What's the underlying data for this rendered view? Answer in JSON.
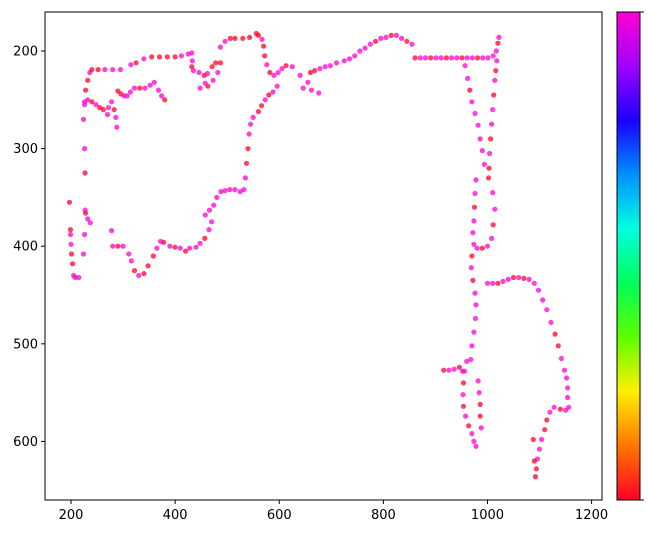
{
  "chart_data": {
    "type": "scatter",
    "title": "",
    "xlabel": "",
    "ylabel": "",
    "xlim": [
      150,
      1220
    ],
    "ylim": [
      660,
      160
    ],
    "y_inverted": true,
    "xticks": [
      200,
      400,
      600,
      800,
      1000,
      1200
    ],
    "yticks": [
      200,
      300,
      400,
      500,
      600
    ],
    "grid": false,
    "legend": "none",
    "marker_opacity": 0.75,
    "colormap": "gist_rainbow_r",
    "colorbar": {
      "position": "right",
      "ticklabels": [],
      "colors": [
        "#ff0028",
        "#ff7700",
        "#ffef00",
        "#5cff00",
        "#00ff59",
        "#00ffe1",
        "#0091ff",
        "#1a00ff",
        "#a000ff",
        "#ff00d2"
      ]
    },
    "points": [
      [
        197,
        355
      ],
      [
        199,
        383
      ],
      [
        199,
        388
      ],
      [
        200,
        398
      ],
      [
        201,
        408
      ],
      [
        203,
        418
      ],
      [
        205,
        430
      ],
      [
        208,
        432
      ],
      [
        215,
        432
      ],
      [
        224,
        408
      ],
      [
        226,
        388
      ],
      [
        227,
        363
      ],
      [
        227,
        325
      ],
      [
        226,
        300
      ],
      [
        224,
        270
      ],
      [
        226,
        252
      ],
      [
        228,
        240
      ],
      [
        232,
        230
      ],
      [
        236,
        222
      ],
      [
        240,
        219
      ],
      [
        252,
        219
      ],
      [
        265,
        219
      ],
      [
        280,
        219
      ],
      [
        295,
        219
      ],
      [
        315,
        214
      ],
      [
        325,
        212
      ],
      [
        340,
        208
      ],
      [
        355,
        206
      ],
      [
        370,
        206
      ],
      [
        385,
        206
      ],
      [
        400,
        206
      ],
      [
        412,
        205
      ],
      [
        425,
        203
      ],
      [
        432,
        202
      ],
      [
        433,
        210
      ],
      [
        432,
        216
      ],
      [
        435,
        220
      ],
      [
        446,
        222
      ],
      [
        456,
        225
      ],
      [
        462,
        223
      ],
      [
        471,
        216
      ],
      [
        478,
        212
      ],
      [
        487,
        212
      ],
      [
        482,
        222
      ],
      [
        473,
        230
      ],
      [
        463,
        236
      ],
      [
        458,
        233
      ],
      [
        448,
        238
      ],
      [
        487,
        196
      ],
      [
        496,
        190
      ],
      [
        506,
        187
      ],
      [
        515,
        187
      ],
      [
        530,
        187
      ],
      [
        543,
        186
      ],
      [
        556,
        182
      ],
      [
        560,
        184
      ],
      [
        567,
        188
      ],
      [
        570,
        195
      ],
      [
        572,
        205
      ],
      [
        576,
        214
      ],
      [
        582,
        222
      ],
      [
        590,
        225
      ],
      [
        598,
        222
      ],
      [
        605,
        218
      ],
      [
        613,
        215
      ],
      [
        625,
        216
      ],
      [
        640,
        225
      ],
      [
        646,
        238
      ],
      [
        596,
        236
      ],
      [
        588,
        242
      ],
      [
        580,
        245
      ],
      [
        573,
        250
      ],
      [
        566,
        256
      ],
      [
        560,
        262
      ],
      [
        550,
        268
      ],
      [
        545,
        275
      ],
      [
        542,
        285
      ],
      [
        540,
        300
      ],
      [
        537,
        315
      ],
      [
        535,
        330
      ],
      [
        532,
        342
      ],
      [
        525,
        344
      ],
      [
        515,
        342
      ],
      [
        505,
        342
      ],
      [
        496,
        343
      ],
      [
        488,
        344
      ],
      [
        480,
        350
      ],
      [
        474,
        358
      ],
      [
        466,
        363
      ],
      [
        458,
        368
      ],
      [
        470,
        375
      ],
      [
        465,
        383
      ],
      [
        457,
        392
      ],
      [
        448,
        397
      ],
      [
        440,
        401
      ],
      [
        428,
        402
      ],
      [
        420,
        405
      ],
      [
        410,
        402
      ],
      [
        400,
        401
      ],
      [
        390,
        400
      ],
      [
        378,
        396
      ],
      [
        372,
        395
      ],
      [
        365,
        402
      ],
      [
        358,
        410
      ],
      [
        348,
        420
      ],
      [
        340,
        428
      ],
      [
        330,
        430
      ],
      [
        322,
        425
      ],
      [
        316,
        415
      ],
      [
        311,
        408
      ],
      [
        300,
        400
      ],
      [
        290,
        400
      ],
      [
        280,
        400
      ],
      [
        278,
        384
      ],
      [
        288,
        278
      ],
      [
        286,
        268
      ],
      [
        283,
        260
      ],
      [
        278,
        252
      ],
      [
        272,
        258
      ],
      [
        270,
        265
      ],
      [
        262,
        260
      ],
      [
        255,
        258
      ],
      [
        248,
        255
      ],
      [
        240,
        252
      ],
      [
        232,
        250
      ],
      [
        226,
        255
      ],
      [
        237,
        376
      ],
      [
        232,
        372
      ],
      [
        228,
        366
      ],
      [
        290,
        241
      ],
      [
        296,
        244
      ],
      [
        302,
        246
      ],
      [
        308,
        246
      ],
      [
        314,
        242
      ],
      [
        322,
        238
      ],
      [
        332,
        238
      ],
      [
        342,
        238
      ],
      [
        352,
        235
      ],
      [
        360,
        232
      ],
      [
        368,
        240
      ],
      [
        374,
        246
      ],
      [
        380,
        250
      ],
      [
        676,
        243
      ],
      [
        662,
        240
      ],
      [
        655,
        232
      ],
      [
        660,
        222
      ],
      [
        668,
        220
      ],
      [
        678,
        218
      ],
      [
        688,
        216
      ],
      [
        698,
        215
      ],
      [
        710,
        212
      ],
      [
        725,
        210
      ],
      [
        735,
        208
      ],
      [
        745,
        205
      ],
      [
        755,
        200
      ],
      [
        765,
        197
      ],
      [
        775,
        193
      ],
      [
        785,
        190
      ],
      [
        795,
        187
      ],
      [
        805,
        186
      ],
      [
        815,
        184
      ],
      [
        825,
        184
      ],
      [
        835,
        187
      ],
      [
        845,
        190
      ],
      [
        855,
        193
      ],
      [
        861,
        207
      ],
      [
        871,
        207
      ],
      [
        881,
        207
      ],
      [
        891,
        207
      ],
      [
        901,
        207
      ],
      [
        911,
        207
      ],
      [
        921,
        207
      ],
      [
        931,
        207
      ],
      [
        941,
        207
      ],
      [
        951,
        207
      ],
      [
        961,
        207
      ],
      [
        971,
        207
      ],
      [
        981,
        207
      ],
      [
        991,
        207
      ],
      [
        1001,
        207
      ],
      [
        1011,
        205
      ],
      [
        1017,
        200
      ],
      [
        1020,
        192
      ],
      [
        1022,
        186
      ],
      [
        1018,
        210
      ],
      [
        1016,
        220
      ],
      [
        1014,
        230
      ],
      [
        1012,
        245
      ],
      [
        1010,
        260
      ],
      [
        1008,
        275
      ],
      [
        1006,
        290
      ],
      [
        1004,
        305
      ],
      [
        1003,
        320
      ],
      [
        1002,
        330
      ],
      [
        957,
        215
      ],
      [
        962,
        228
      ],
      [
        966,
        240
      ],
      [
        970,
        252
      ],
      [
        976,
        264
      ],
      [
        982,
        276
      ],
      [
        986,
        290
      ],
      [
        990,
        302
      ],
      [
        994,
        316
      ],
      [
        978,
        332
      ],
      [
        976,
        346
      ],
      [
        975,
        360
      ],
      [
        974,
        374
      ],
      [
        972,
        386
      ],
      [
        974,
        398
      ],
      [
        980,
        402
      ],
      [
        990,
        402
      ],
      [
        1000,
        400
      ],
      [
        1008,
        392
      ],
      [
        1011,
        378
      ],
      [
        1014,
        362
      ],
      [
        1010,
        345
      ],
      [
        970,
        410
      ],
      [
        969,
        422
      ],
      [
        972,
        435
      ],
      [
        976,
        448
      ],
      [
        978,
        460
      ],
      [
        977,
        474
      ],
      [
        974,
        488
      ],
      [
        970,
        502
      ],
      [
        968,
        516
      ],
      [
        960,
        518
      ],
      [
        956,
        528
      ],
      [
        954,
        540
      ],
      [
        953,
        552
      ],
      [
        954,
        564
      ],
      [
        958,
        574
      ],
      [
        964,
        584
      ],
      [
        970,
        592
      ],
      [
        974,
        600
      ],
      [
        978,
        605
      ],
      [
        946,
        524
      ],
      [
        936,
        526
      ],
      [
        926,
        527
      ],
      [
        916,
        527
      ],
      [
        952,
        528
      ],
      [
        988,
        586
      ],
      [
        986,
        574
      ],
      [
        986,
        562
      ],
      [
        984,
        550
      ],
      [
        982,
        538
      ],
      [
        1000,
        438
      ],
      [
        1010,
        438
      ],
      [
        1020,
        438
      ],
      [
        1030,
        436
      ],
      [
        1040,
        434
      ],
      [
        1050,
        432
      ],
      [
        1060,
        432
      ],
      [
        1070,
        433
      ],
      [
        1080,
        434
      ],
      [
        1090,
        438
      ],
      [
        1098,
        445
      ],
      [
        1106,
        455
      ],
      [
        1114,
        465
      ],
      [
        1122,
        478
      ],
      [
        1130,
        490
      ],
      [
        1136,
        502
      ],
      [
        1142,
        515
      ],
      [
        1148,
        527
      ],
      [
        1152,
        535
      ],
      [
        1154,
        545
      ],
      [
        1154,
        555
      ],
      [
        1156,
        565
      ],
      [
        1150,
        568
      ],
      [
        1140,
        567
      ],
      [
        1128,
        565
      ],
      [
        1120,
        570
      ],
      [
        1114,
        578
      ],
      [
        1110,
        588
      ],
      [
        1104,
        598
      ],
      [
        1100,
        608
      ],
      [
        1096,
        618
      ],
      [
        1094,
        628
      ],
      [
        1092,
        636
      ],
      [
        1088,
        598
      ],
      [
        1090,
        620
      ]
    ]
  }
}
